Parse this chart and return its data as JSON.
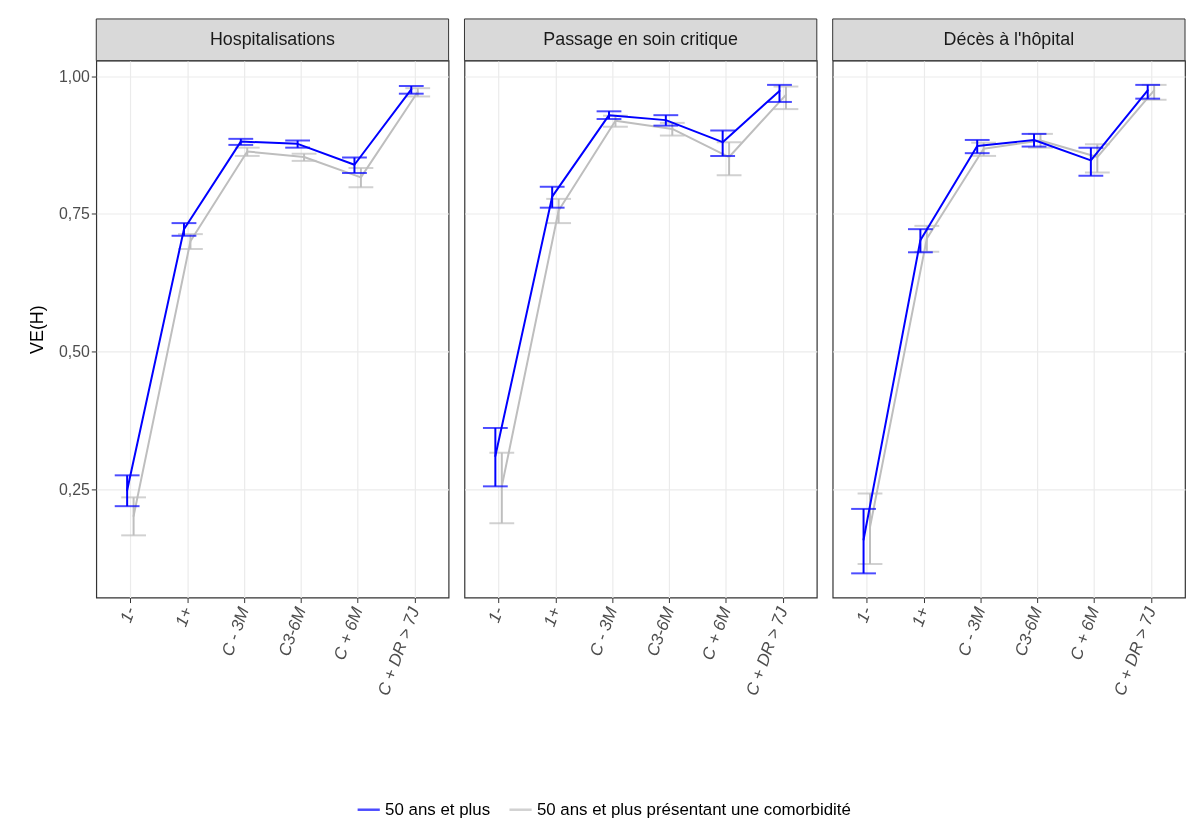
{
  "chart_data": [
    {
      "type": "line",
      "title": "Hospitalisations",
      "ylabel": "VE(H)",
      "categories": [
        "1-",
        "1+",
        "C - 3M",
        "C3-6M",
        "C + 6M",
        "C + DR > 7J"
      ],
      "ylim": [
        0.053,
        1.028
      ],
      "yticks": [
        {
          "value": 0.25,
          "label": "0,25"
        },
        {
          "value": 0.5,
          "label": "0,50"
        },
        {
          "value": 0.75,
          "label": "0,75"
        },
        {
          "value": 1.0,
          "label": "1,00"
        }
      ],
      "grid": true,
      "legend": "bottom",
      "series": [
        {
          "name": "50 ans et plus",
          "color": "#0000ff",
          "values": [
            0.248,
            0.722,
            0.881,
            0.877,
            0.839,
            0.976
          ],
          "errors": [
            [
              0.219,
              0.275
            ],
            [
              0.71,
              0.733
            ],
            [
              0.875,
              0.886
            ],
            [
              0.87,
              0.883
            ],
            [
              0.824,
              0.852
            ],
            [
              0.968,
              0.982
            ]
          ]
        },
        {
          "name": "50 ans et plus présentant une comorbidité",
          "color": "#bebebe",
          "values": [
            0.201,
            0.7,
            0.863,
            0.853,
            0.816,
            0.971
          ],
          "errors": [
            [
              0.166,
              0.235
            ],
            [
              0.686,
              0.713
            ],
            [
              0.855,
              0.87
            ],
            [
              0.846,
              0.859
            ],
            [
              0.798,
              0.833
            ],
            [
              0.963,
              0.978
            ]
          ]
        }
      ]
    },
    {
      "type": "line",
      "title": "Passage en soin critique",
      "categories": [
        "1-",
        "1+",
        "C - 3M",
        "C3-6M",
        "C + 6M",
        "C + DR > 7J"
      ],
      "ylim": [
        0.053,
        1.028
      ],
      "yticks": [
        0.25,
        0.5,
        0.75,
        1.0
      ],
      "grid": true,
      "legend": "bottom",
      "tick_labels": "x",
      "series": [
        {
          "name": "50 ans et plus",
          "color": "#0000ff",
          "values": [
            0.31,
            0.781,
            0.929,
            0.92,
            0.88,
            0.973
          ],
          "errors": [
            [
              0.255,
              0.361
            ],
            [
              0.761,
              0.799
            ],
            [
              0.922,
              0.936
            ],
            [
              0.91,
              0.929
            ],
            [
              0.855,
              0.901
            ],
            [
              0.953,
              0.984
            ]
          ]
        },
        {
          "name": "50 ans et plus présentant une comorbidité",
          "color": "#bebebe",
          "values": [
            0.255,
            0.756,
            0.919,
            0.904,
            0.853,
            0.966
          ],
          "errors": [
            [
              0.188,
              0.316
            ],
            [
              0.733,
              0.777
            ],
            [
              0.908,
              0.928
            ],
            [
              0.892,
              0.915
            ],
            [
              0.82,
              0.88
            ],
            [
              0.94,
              0.981
            ]
          ]
        }
      ]
    },
    {
      "type": "line",
      "title": "Décès à l'hôpital",
      "categories": [
        "1-",
        "1+",
        "C - 3M",
        "C3-6M",
        "C + 6M",
        "C + DR > 7J"
      ],
      "ylim": [
        0.053,
        1.028
      ],
      "yticks": [
        0.25,
        0.5,
        0.75,
        1.0
      ],
      "grid": true,
      "legend": "bottom",
      "tick_labels": "x",
      "series": [
        {
          "name": "50 ans et plus",
          "color": "#0000ff",
          "values": [
            0.158,
            0.702,
            0.873,
            0.884,
            0.847,
            0.974
          ],
          "errors": [
            [
              0.097,
              0.214
            ],
            [
              0.68,
              0.722
            ],
            [
              0.86,
              0.884
            ],
            [
              0.872,
              0.895
            ],
            [
              0.819,
              0.87
            ],
            [
              0.959,
              0.984
            ]
          ]
        },
        {
          "name": "50 ans et plus présentant une comorbidité",
          "color": "#bebebe",
          "values": [
            0.181,
            0.705,
            0.868,
            0.883,
            0.853,
            0.974
          ],
          "errors": [
            [
              0.114,
              0.242
            ],
            [
              0.681,
              0.728
            ],
            [
              0.855,
              0.879
            ],
            [
              0.87,
              0.895
            ],
            [
              0.825,
              0.876
            ],
            [
              0.957,
              0.984
            ]
          ]
        }
      ]
    }
  ]
}
